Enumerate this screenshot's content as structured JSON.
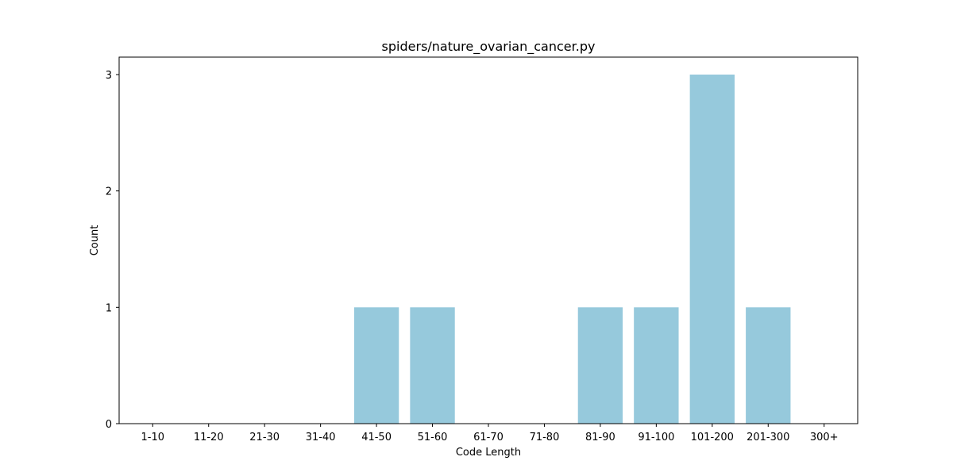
{
  "chart_data": {
    "type": "bar",
    "title": "spiders/nature_ovarian_cancer.py",
    "xlabel": "Code Length",
    "ylabel": "Count",
    "categories": [
      "1-10",
      "11-20",
      "21-30",
      "31-40",
      "41-50",
      "51-60",
      "61-70",
      "71-80",
      "81-90",
      "91-100",
      "101-200",
      "201-300",
      "300+"
    ],
    "values": [
      0,
      0,
      0,
      0,
      1,
      1,
      0,
      0,
      1,
      1,
      3,
      1,
      0
    ],
    "ylim": [
      0,
      3.15
    ],
    "yticks": [
      0,
      1,
      2,
      3
    ],
    "grid": false,
    "bar_color": "#96c9dc"
  }
}
